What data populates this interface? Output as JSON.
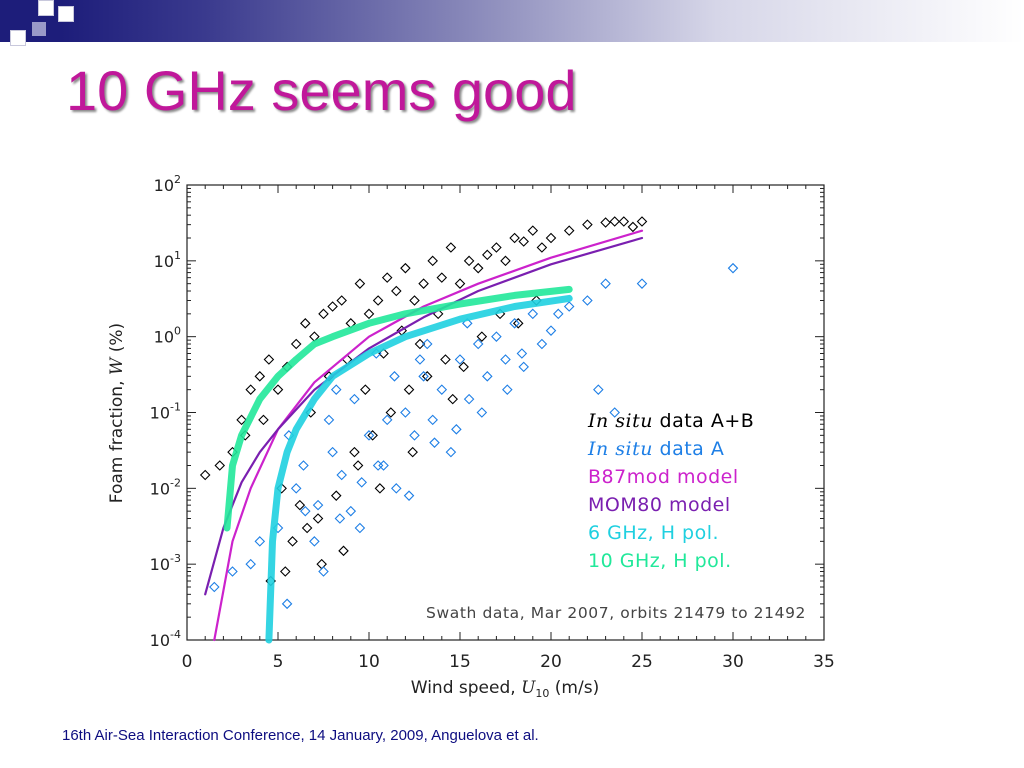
{
  "slide": {
    "title": "10 GHz seems good",
    "footer": "16th Air-Sea Interaction Conference, 14 January, 2009, Anguelova et al."
  },
  "colors": {
    "title": "#c0189a",
    "footer": "#0d0d80",
    "insitu_ab": "#000000",
    "insitu_a": "#1e7fe6",
    "b87mod": "#cc22cc",
    "mom80": "#7a1fb0",
    "ghz6": "#1fd0e0",
    "ghz10": "#21e89a"
  },
  "chart_data": {
    "type": "scatter",
    "xlabel": "Wind speed, U10 (m/s)",
    "ylabel": "Foam fraction, W (%)",
    "xlim": [
      0,
      35
    ],
    "ylim": [
      0.0001,
      100
    ],
    "y_scale": "log",
    "x_ticks": [
      "0",
      "5",
      "10",
      "15",
      "20",
      "25",
      "30",
      "35"
    ],
    "y_ticks": [
      {
        "base": "10",
        "exp": "-4"
      },
      {
        "base": "10",
        "exp": "-3"
      },
      {
        "base": "10",
        "exp": "-2"
      },
      {
        "base": "10",
        "exp": "-1"
      },
      {
        "base": "10",
        "exp": "0"
      },
      {
        "base": "10",
        "exp": "1"
      },
      {
        "base": "10",
        "exp": "2"
      }
    ],
    "annotation": "Swath data, Mar 2007, orbits 21479 to 21492",
    "legend_position": "lower-right",
    "legend": [
      {
        "italic": "In situ",
        "text": " data A+B",
        "color": "#000000"
      },
      {
        "italic": "In situ",
        "text": " data A",
        "color": "#1e7fe6"
      },
      {
        "italic": "",
        "text": "B87mod  model",
        "color": "#cc22cc"
      },
      {
        "italic": "",
        "text": "MOM80   model",
        "color": "#7a1fb0"
      },
      {
        "italic": "",
        "text": " 6 GHz, H pol.",
        "color": "#1fd0e0"
      },
      {
        "italic": "",
        "text": "10 GHz, H pol.",
        "color": "#21e89a"
      }
    ],
    "series": [
      {
        "name": "In situ data A+B",
        "kind": "points",
        "marker": "diamond",
        "color": "#000000",
        "x": [
          1.0,
          1.8,
          2.5,
          3.0,
          3.5,
          4.0,
          4.5,
          5.0,
          5.5,
          6.0,
          6.5,
          7.0,
          7.5,
          8.0,
          8.5,
          9.0,
          9.5,
          10.0,
          10.5,
          11.0,
          11.5,
          12.0,
          12.5,
          13.0,
          13.5,
          14.0,
          14.5,
          15.0,
          15.5,
          16.0,
          16.5,
          17.0,
          17.5,
          18.0,
          18.5,
          19.0,
          19.5,
          20.0,
          21.0,
          22.0,
          23.0,
          23.5,
          24.0,
          24.5,
          25.0,
          3.2,
          4.2,
          5.2,
          6.2,
          7.2,
          8.2,
          9.2,
          10.2,
          11.2,
          12.2,
          13.2,
          14.2,
          15.2,
          16.2,
          17.2,
          18.2,
          19.2,
          6.8,
          7.8,
          8.8,
          9.8,
          10.8,
          11.8,
          12.8,
          13.8,
          5.8,
          6.6,
          7.4,
          8.6,
          9.4,
          4.6,
          5.4,
          10.6,
          12.4,
          14.6
        ],
        "y": [
          0.015,
          0.02,
          0.03,
          0.08,
          0.2,
          0.3,
          0.5,
          0.2,
          0.4,
          0.8,
          1.5,
          1.0,
          2.0,
          2.5,
          3.0,
          1.5,
          5.0,
          2.0,
          3.0,
          6.0,
          4.0,
          8.0,
          3.0,
          5.0,
          10.0,
          6.0,
          15.0,
          5.0,
          10.0,
          8.0,
          12.0,
          15.0,
          10.0,
          20.0,
          18.0,
          25.0,
          15.0,
          20.0,
          25.0,
          30.0,
          32.0,
          33.0,
          33.0,
          28.0,
          33.0,
          0.05,
          0.08,
          0.01,
          0.006,
          0.004,
          0.008,
          0.03,
          0.05,
          0.1,
          0.2,
          0.3,
          0.5,
          0.4,
          1.0,
          2.0,
          1.5,
          3.0,
          0.1,
          0.3,
          0.5,
          0.2,
          0.6,
          1.2,
          0.8,
          2.0,
          0.002,
          0.003,
          0.001,
          0.0015,
          0.02,
          0.0006,
          0.0008,
          0.01,
          0.03,
          0.15
        ]
      },
      {
        "name": "In situ data A",
        "kind": "points",
        "marker": "diamond",
        "color": "#1e7fe6",
        "x": [
          1.5,
          2.5,
          3.5,
          4.0,
          5.0,
          5.5,
          6.0,
          6.5,
          7.0,
          7.5,
          8.0,
          8.5,
          9.0,
          9.5,
          10.0,
          10.5,
          11.0,
          11.5,
          12.0,
          12.5,
          13.0,
          13.5,
          14.0,
          14.5,
          15.0,
          15.5,
          16.0,
          16.5,
          17.0,
          17.5,
          18.0,
          18.5,
          19.0,
          19.5,
          20.0,
          21.0,
          22.0,
          23.0,
          23.5,
          25.0,
          30.0,
          7.2,
          8.4,
          9.6,
          10.8,
          12.2,
          13.6,
          14.8,
          16.2,
          17.6,
          11.4,
          12.8,
          9.2,
          8.2,
          7.8,
          10.4,
          6.4,
          5.6,
          13.2,
          15.4,
          18.4,
          20.4,
          22.6
        ],
        "y": [
          0.0005,
          0.0008,
          0.001,
          0.002,
          0.003,
          0.0003,
          0.01,
          0.005,
          0.002,
          0.0008,
          0.03,
          0.015,
          0.005,
          0.003,
          0.05,
          0.02,
          0.08,
          0.01,
          0.1,
          0.05,
          0.3,
          0.08,
          0.2,
          0.03,
          0.5,
          0.15,
          0.8,
          0.3,
          1.0,
          0.5,
          1.5,
          0.4,
          2.0,
          0.8,
          1.2,
          2.5,
          3.0,
          5.0,
          0.1,
          5.0,
          8.0,
          0.006,
          0.004,
          0.012,
          0.02,
          0.008,
          0.04,
          0.06,
          0.1,
          0.2,
          0.3,
          0.5,
          0.15,
          0.2,
          0.08,
          0.6,
          0.02,
          0.05,
          0.8,
          1.5,
          0.6,
          2.0,
          0.2
        ]
      },
      {
        "name": "B87mod model",
        "kind": "line",
        "color": "#cc22cc",
        "width": 2.2,
        "x": [
          1.5,
          2.5,
          3.5,
          5.0,
          7.0,
          10.0,
          13.0,
          16.0,
          20.0,
          25.0
        ],
        "y": [
          0.0001,
          0.002,
          0.01,
          0.06,
          0.25,
          1.0,
          2.5,
          5.0,
          11.0,
          25.0
        ]
      },
      {
        "name": "MOM80 model",
        "kind": "line",
        "color": "#7a1fb0",
        "width": 2.2,
        "x": [
          1.0,
          2.0,
          3.0,
          4.0,
          5.0,
          7.0,
          10.0,
          13.0,
          16.0,
          20.0,
          25.0
        ],
        "y": [
          0.0004,
          0.003,
          0.012,
          0.03,
          0.06,
          0.2,
          0.7,
          1.8,
          4.0,
          9.0,
          20.0
        ]
      },
      {
        "name": "6 GHz, H pol.",
        "kind": "band",
        "color": "#1fd0e0",
        "width": 7,
        "x": [
          4.5,
          4.7,
          5.0,
          5.5,
          6.0,
          7.0,
          8.0,
          10.0,
          12.0,
          15.0,
          18.0,
          21.0
        ],
        "y": [
          0.0001,
          0.002,
          0.01,
          0.03,
          0.06,
          0.15,
          0.3,
          0.6,
          1.0,
          1.7,
          2.5,
          3.2
        ]
      },
      {
        "name": "10 GHz, H pol.",
        "kind": "band",
        "color": "#21e89a",
        "width": 7,
        "x": [
          2.2,
          2.5,
          3.0,
          4.0,
          5.0,
          6.0,
          7.0,
          8.0,
          10.0,
          12.0,
          15.0,
          18.0,
          21.0
        ],
        "y": [
          0.003,
          0.02,
          0.05,
          0.15,
          0.3,
          0.5,
          0.8,
          1.0,
          1.5,
          2.0,
          2.7,
          3.5,
          4.2
        ]
      }
    ]
  }
}
